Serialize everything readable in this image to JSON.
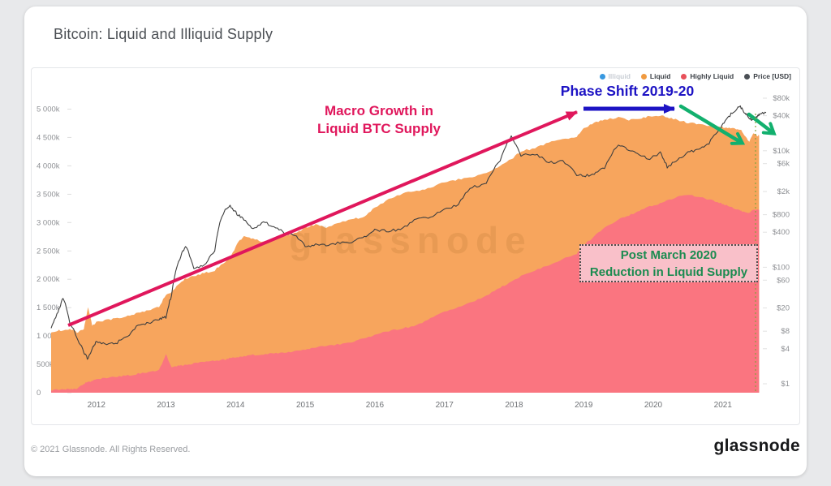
{
  "header": {
    "title": "Bitcoin: Liquid and Illiquid Supply"
  },
  "legend": [
    {
      "label": "Illiquid",
      "color": "#3898E0",
      "disabled": true
    },
    {
      "label": "Liquid",
      "color": "#F09A40",
      "disabled": false
    },
    {
      "label": "Highly Liquid",
      "color": "#E8505A",
      "disabled": false
    },
    {
      "label": "Price [USD]",
      "color": "#4A4F55",
      "disabled": false
    }
  ],
  "watermark": {
    "text": "glassnode"
  },
  "annotations": {
    "macro": {
      "line1": "Macro Growth in",
      "line2": "Liquid BTC Supply",
      "color": "#E0175C"
    },
    "phase": {
      "text": "Phase Shift 2019-20",
      "color": "#1D13C4"
    },
    "post_march": {
      "line1": "Post March 2020",
      "line2": "Reduction in Liquid Supply",
      "color": "#1B8B50"
    }
  },
  "footer": {
    "copyright": "© 2021 Glassnode. All Rights Reserved.",
    "brand": "glassnode"
  },
  "chart_data": {
    "type": "area",
    "title": "Bitcoin: Liquid and Illiquid Supply",
    "legend_position": "top-right",
    "grid": false,
    "x_range": [
      2011.35,
      2021.55
    ],
    "x_ticks": [
      2012,
      2013,
      2014,
      2015,
      2016,
      2017,
      2018,
      2019,
      2020,
      2021
    ],
    "left_axis": {
      "unit": "k BTC",
      "range_k": [
        0,
        5000
      ],
      "ticks": [
        {
          "v": 0,
          "label": "0"
        },
        {
          "v": 500,
          "label": "500k"
        },
        {
          "v": 1000,
          "label": "1 000k"
        },
        {
          "v": 1500,
          "label": "1 500k"
        },
        {
          "v": 2000,
          "label": "2 000k"
        },
        {
          "v": 2500,
          "label": "2 500k"
        },
        {
          "v": 3000,
          "label": "3 000k"
        },
        {
          "v": 3500,
          "label": "3 500k"
        },
        {
          "v": 4000,
          "label": "4 000k"
        },
        {
          "v": 4500,
          "label": "4 500k"
        },
        {
          "v": 5000,
          "label": "5 000k"
        }
      ]
    },
    "right_axis": {
      "unit": "USD",
      "scale": "log",
      "ticks": [
        {
          "usd": 1,
          "label": "$1"
        },
        {
          "usd": 4,
          "label": "$4"
        },
        {
          "usd": 8,
          "label": "$8"
        },
        {
          "usd": 20,
          "label": "$20"
        },
        {
          "usd": 60,
          "label": "$60"
        },
        {
          "usd": 100,
          "label": "$100"
        },
        {
          "usd": 400,
          "label": "$400"
        },
        {
          "usd": 800,
          "label": "$800"
        },
        {
          "usd": 2000,
          "label": "$2k"
        },
        {
          "usd": 6000,
          "label": "$6k"
        },
        {
          "usd": 10000,
          "label": "$10k"
        },
        {
          "usd": 40000,
          "label": "$40k"
        },
        {
          "usd": 80000,
          "label": "$80k"
        }
      ]
    },
    "colors": {
      "liquid": "#F7A55D",
      "highly_liquid": "#FA7580",
      "price": "#3F3F3F",
      "dotted_marker_line": "#86A33E"
    },
    "supply_x": [
      2011.35,
      2011.45,
      2011.52,
      2011.62,
      2011.72,
      2011.82,
      2011.88,
      2011.94,
      2012.0,
      2012.15,
      2012.3,
      2012.45,
      2012.6,
      2012.75,
      2012.9,
      2013.0,
      2013.08,
      2013.2,
      2013.28,
      2013.4,
      2013.55,
      2013.7,
      2013.85,
      2013.92,
      2014.02,
      2014.12,
      2014.25,
      2014.4,
      2014.55,
      2014.7,
      2014.85,
      2015.0,
      2015.15,
      2015.3,
      2015.5,
      2015.7,
      2015.85,
      2016.0,
      2016.2,
      2016.4,
      2016.6,
      2016.8,
      2017.0,
      2017.2,
      2017.4,
      2017.6,
      2017.8,
      2017.96,
      2018.1,
      2018.3,
      2018.5,
      2018.7,
      2018.9,
      2019.0,
      2019.15,
      2019.3,
      2019.5,
      2019.65,
      2019.8,
      2019.95,
      2020.1,
      2020.2,
      2020.35,
      2020.5,
      2020.65,
      2020.8,
      2020.95,
      2021.05,
      2021.15,
      2021.25,
      2021.32,
      2021.38,
      2021.44,
      2021.5,
      2021.52
    ],
    "highly_liquid_k": [
      40,
      55,
      60,
      65,
      75,
      160,
      190,
      210,
      235,
      265,
      285,
      305,
      335,
      365,
      395,
      670,
      455,
      475,
      490,
      515,
      545,
      565,
      585,
      605,
      625,
      645,
      665,
      675,
      695,
      705,
      725,
      765,
      795,
      825,
      855,
      905,
      955,
      1025,
      1085,
      1135,
      1185,
      1305,
      1425,
      1505,
      1605,
      1705,
      1855,
      1955,
      2055,
      2155,
      2255,
      2355,
      2455,
      2605,
      2755,
      2905,
      3055,
      3125,
      3205,
      3285,
      3335,
      3385,
      3455,
      3485,
      3455,
      3405,
      3355,
      3305,
      3255,
      3205,
      3185,
      3175,
      3235,
      3225,
      3215
    ],
    "liquid_k": [
      1020,
      1045,
      1020,
      1065,
      995,
      950,
      1330,
      970,
      1005,
      1015,
      1025,
      1045,
      1075,
      1095,
      1125,
      1050,
      1325,
      1455,
      1520,
      1545,
      1565,
      1595,
      1725,
      1755,
      1995,
      2125,
      2045,
      1985,
      2025,
      2055,
      2085,
      2145,
      2165,
      2085,
      2155,
      2155,
      2155,
      2235,
      2325,
      2375,
      2375,
      2305,
      2285,
      2255,
      2205,
      2155,
      2155,
      2155,
      2205,
      2155,
      2155,
      2105,
      2055,
      2055,
      2005,
      1905,
      1805,
      1685,
      1625,
      1595,
      1555,
      1475,
      1355,
      1275,
      1275,
      1305,
      1335,
      1365,
      1400,
      1440,
      1325,
      1255,
      1335,
      1305,
      1325
    ],
    "price_usd": [
      9,
      17,
      29,
      11,
      6,
      3.4,
      2.6,
      4.0,
      5.3,
      4.9,
      5.1,
      6.6,
      10,
      11,
      13,
      14,
      32,
      140,
      225,
      97,
      105,
      190,
      950,
      1130,
      820,
      640,
      455,
      590,
      505,
      385,
      355,
      225,
      245,
      235,
      265,
      275,
      335,
      430,
      420,
      455,
      660,
      710,
      985,
      1180,
      2400,
      2700,
      6600,
      17500,
      8300,
      8900,
      6300,
      6500,
      3900,
      3650,
      3950,
      5100,
      12300,
      10400,
      8300,
      7200,
      9200,
      5300,
      6900,
      9200,
      10700,
      13600,
      23500,
      33500,
      47000,
      57500,
      44000,
      35500,
      33500,
      39500,
      42500
    ],
    "price_tail": {
      "x": 2021.62,
      "usd": 45000
    }
  }
}
